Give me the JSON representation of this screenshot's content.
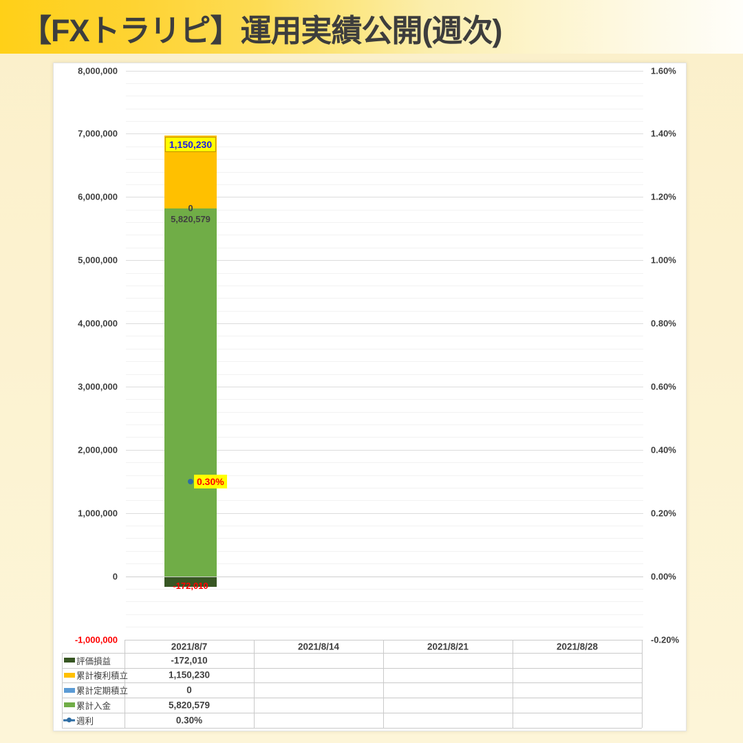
{
  "title": "【FXトラリピ】運用実績公開(週次)",
  "colors": {
    "band_gold": "#FFD11A",
    "background_cream": "#FBF1CD",
    "panel": "#FFFFFF",
    "grid_major": "#DCDCDC",
    "grid_minor": "#F2F2F2",
    "axis_text": "#404040",
    "negative_axis_text": "#FF0000",
    "title_text": "#3D3D3D",
    "table_border": "#C9C9C9"
  },
  "chart_data": {
    "type": "bar",
    "subtype": "stacked-column-with-line-point",
    "categories": [
      "2021/8/7",
      "2021/8/14",
      "2021/8/21",
      "2021/8/28"
    ],
    "series": [
      {
        "name": "評価損益",
        "type": "bar",
        "color": "#375623",
        "axis": "left",
        "values": [
          -172010,
          null,
          null,
          null
        ],
        "formatted": [
          "-172,010",
          "",
          "",
          ""
        ],
        "label": {
          "text": "-172,010",
          "color": "#FF0000",
          "bg": null,
          "pos": "end-of-negative"
        }
      },
      {
        "name": "累計複利積立",
        "type": "bar",
        "color": "#FFC000",
        "axis": "left",
        "values": [
          1150230,
          null,
          null,
          null
        ],
        "formatted": [
          "1,150,230",
          "",
          "",
          ""
        ],
        "label": {
          "text": "1,150,230",
          "color": "#1A1AE6",
          "bg": "#FFFF00",
          "border": "#BF9000",
          "pos": "inside-top-box"
        }
      },
      {
        "name": "累計定期積立",
        "type": "bar",
        "color": "#5B9BD5",
        "axis": "left",
        "values": [
          0,
          null,
          null,
          null
        ],
        "formatted": [
          "0",
          "",
          "",
          ""
        ],
        "label": {
          "text": "0",
          "color": "#404040",
          "bg": null,
          "pos": "at-top"
        }
      },
      {
        "name": "累計入金",
        "type": "bar",
        "color": "#70AD47",
        "axis": "left",
        "values": [
          5820579,
          null,
          null,
          null
        ],
        "formatted": [
          "5,820,579",
          "",
          "",
          ""
        ],
        "label": {
          "text": "5,820,579",
          "color": "#404040",
          "bg": null,
          "pos": "inside-top"
        }
      },
      {
        "name": "週利",
        "type": "line",
        "color": "#2E6DA4",
        "axis": "right",
        "values": [
          0.3,
          null,
          null,
          null
        ],
        "formatted": [
          "0.30%",
          "",
          "",
          ""
        ],
        "label": {
          "text": "0.30%",
          "color": "#FF0000",
          "bg": "#FFFF00",
          "pos": "right-of-point"
        }
      }
    ],
    "stack_order": [
      "評価損益",
      "累計入金",
      "累計定期積立",
      "累計複利積立"
    ],
    "left_axis": {
      "min": -1000000,
      "max": 8000000,
      "major": 1000000,
      "minor": 200000,
      "ticks": [
        "8,000,000",
        "7,000,000",
        "6,000,000",
        "5,000,000",
        "4,000,000",
        "3,000,000",
        "2,000,000",
        "1,000,000",
        "0",
        "-1,000,000"
      ],
      "tick_values": [
        8000000,
        7000000,
        6000000,
        5000000,
        4000000,
        3000000,
        2000000,
        1000000,
        0,
        -1000000
      ]
    },
    "right_axis": {
      "min": -0.2,
      "max": 1.6,
      "major": 0.2,
      "ticks": [
        "1.60%",
        "1.40%",
        "1.20%",
        "1.00%",
        "0.80%",
        "0.60%",
        "0.40%",
        "0.20%",
        "0.00%",
        "-0.20%"
      ],
      "tick_values": [
        1.6,
        1.4,
        1.2,
        1.0,
        0.8,
        0.6,
        0.4,
        0.2,
        0.0,
        -0.2
      ]
    },
    "grid": true,
    "legend_position": "data-table"
  }
}
